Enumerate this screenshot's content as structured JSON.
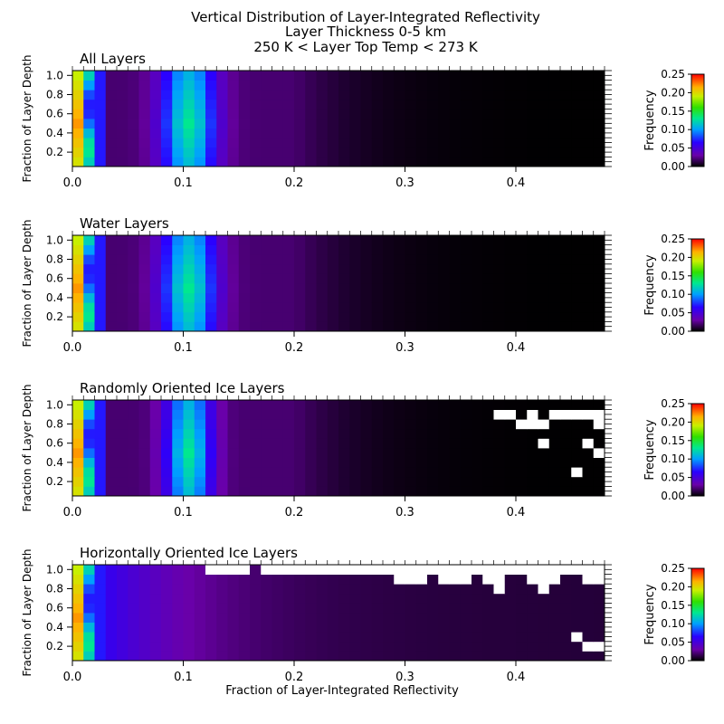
{
  "figure": {
    "title_lines": [
      "Vertical Distribution of Layer-Integrated Reflectivity",
      "Layer Thickness 0-5 km",
      "250 K < Layer Top Temp < 273 K"
    ],
    "xlabel": "Fraction of Layer-Integrated Reflectivity"
  },
  "chart_data": [
    {
      "type": "heatmap",
      "title": "All Layers",
      "ylabel": "Fraction of Layer Depth",
      "xlim": [
        0,
        0.48
      ],
      "ylim": [
        0.05,
        1.05
      ],
      "x_ticks": [
        "0.0",
        "0.1",
        "0.2",
        "0.3",
        "0.4"
      ],
      "y_ticks": [
        "0.2",
        "0.4",
        "0.6",
        "0.8",
        "1.0"
      ],
      "colorbar": {
        "label": "Frequency",
        "range": [
          0,
          0.25
        ],
        "ticks": [
          "0.00",
          "0.05",
          "0.10",
          "0.15",
          "0.20",
          "0.25"
        ],
        "colormap": "rainbow"
      },
      "x_bin_width": 0.01,
      "y_bin_centers": [
        0.1,
        0.2,
        0.3,
        0.4,
        0.5,
        0.6,
        0.7,
        0.8,
        0.9,
        1.0
      ],
      "peak_x": 0.105,
      "spread_x": 0.06,
      "missing_cells": []
    },
    {
      "type": "heatmap",
      "title": "Water Layers",
      "ylabel": "Fraction of Layer Depth",
      "xlim": [
        0,
        0.48
      ],
      "ylim": [
        0.05,
        1.05
      ],
      "x_ticks": [
        "0.0",
        "0.1",
        "0.2",
        "0.3",
        "0.4"
      ],
      "y_ticks": [
        "0.2",
        "0.4",
        "0.6",
        "0.8",
        "1.0"
      ],
      "colorbar": {
        "label": "Frequency",
        "range": [
          0,
          0.25
        ],
        "ticks": [
          "0.00",
          "0.05",
          "0.10",
          "0.15",
          "0.20",
          "0.25"
        ],
        "colormap": "rainbow"
      },
      "x_bin_width": 0.01,
      "y_bin_centers": [
        0.1,
        0.2,
        0.3,
        0.4,
        0.5,
        0.6,
        0.7,
        0.8,
        0.9,
        1.0
      ],
      "peak_x": 0.105,
      "spread_x": 0.06,
      "missing_cells": []
    },
    {
      "type": "heatmap",
      "title": "Randomly Oriented Ice Layers",
      "ylabel": "Fraction of Layer Depth",
      "xlim": [
        0,
        0.48
      ],
      "ylim": [
        0.05,
        1.05
      ],
      "x_ticks": [
        "0.0",
        "0.1",
        "0.2",
        "0.3",
        "0.4"
      ],
      "y_ticks": [
        "0.2",
        "0.4",
        "0.6",
        "0.8",
        "1.0"
      ],
      "colorbar": {
        "label": "Frequency",
        "range": [
          0,
          0.25
        ],
        "ticks": [
          "0.00",
          "0.05",
          "0.10",
          "0.15",
          "0.20",
          "0.25"
        ],
        "colormap": "rainbow"
      },
      "x_bin_width": 0.01,
      "y_bin_centers": [
        0.1,
        0.2,
        0.3,
        0.4,
        0.5,
        0.6,
        0.7,
        0.8,
        0.9,
        1.0
      ],
      "peak_x": 0.105,
      "spread_x": 0.05,
      "missing_cells": [
        [
          0.385,
          0.9
        ],
        [
          0.395,
          0.9
        ],
        [
          0.415,
          0.9
        ],
        [
          0.405,
          0.8
        ],
        [
          0.415,
          0.8
        ],
        [
          0.425,
          0.8
        ],
        [
          0.435,
          0.9
        ],
        [
          0.445,
          0.9
        ],
        [
          0.455,
          0.9
        ],
        [
          0.465,
          0.9
        ],
        [
          0.475,
          0.9
        ],
        [
          0.475,
          0.8
        ],
        [
          0.425,
          0.6
        ],
        [
          0.465,
          0.6
        ],
        [
          0.475,
          0.5
        ],
        [
          0.455,
          0.3
        ]
      ]
    },
    {
      "type": "heatmap",
      "title": "Horizontally Oriented Ice Layers",
      "ylabel": "Fraction of Layer Depth",
      "xlim": [
        0,
        0.48
      ],
      "ylim": [
        0.05,
        1.05
      ],
      "x_ticks": [
        "0.0",
        "0.1",
        "0.2",
        "0.3",
        "0.4"
      ],
      "y_ticks": [
        "0.2",
        "0.4",
        "0.6",
        "0.8",
        "1.0"
      ],
      "colorbar": {
        "label": "Frequency",
        "range": [
          0,
          0.25
        ],
        "ticks": [
          "0.00",
          "0.05",
          "0.10",
          "0.15",
          "0.20",
          "0.25"
        ],
        "colormap": "rainbow"
      },
      "x_bin_width": 0.01,
      "y_bin_centers": [
        0.1,
        0.2,
        0.3,
        0.4,
        0.5,
        0.6,
        0.7,
        0.8,
        0.9,
        1.0
      ],
      "peak_x": 0.015,
      "spread_x": 0.1,
      "missing_cells": [
        [
          0.125,
          1.0
        ],
        [
          0.135,
          1.0
        ],
        [
          0.145,
          1.0
        ],
        [
          0.155,
          1.0
        ],
        [
          0.175,
          1.0
        ],
        [
          0.185,
          1.0
        ],
        [
          0.195,
          1.0
        ],
        [
          0.205,
          1.0
        ],
        [
          0.215,
          1.0
        ],
        [
          0.225,
          1.0
        ],
        [
          0.235,
          1.0
        ],
        [
          0.245,
          1.0
        ],
        [
          0.255,
          1.0
        ],
        [
          0.265,
          1.0
        ],
        [
          0.275,
          1.0
        ],
        [
          0.285,
          1.0
        ],
        [
          0.295,
          1.0
        ],
        [
          0.305,
          1.0
        ],
        [
          0.315,
          1.0
        ],
        [
          0.325,
          1.0
        ],
        [
          0.335,
          1.0
        ],
        [
          0.345,
          1.0
        ],
        [
          0.355,
          1.0
        ],
        [
          0.365,
          1.0
        ],
        [
          0.375,
          1.0
        ],
        [
          0.385,
          1.0
        ],
        [
          0.395,
          1.0
        ],
        [
          0.405,
          1.0
        ],
        [
          0.415,
          1.0
        ],
        [
          0.425,
          1.0
        ],
        [
          0.435,
          1.0
        ],
        [
          0.445,
          1.0
        ],
        [
          0.455,
          1.0
        ],
        [
          0.465,
          1.0
        ],
        [
          0.475,
          1.0
        ],
        [
          0.295,
          0.9
        ],
        [
          0.305,
          0.9
        ],
        [
          0.315,
          0.9
        ],
        [
          0.335,
          0.9
        ],
        [
          0.345,
          0.9
        ],
        [
          0.355,
          0.9
        ],
        [
          0.375,
          0.9
        ],
        [
          0.385,
          0.9
        ],
        [
          0.385,
          0.8
        ],
        [
          0.415,
          0.9
        ],
        [
          0.425,
          0.9
        ],
        [
          0.435,
          0.9
        ],
        [
          0.425,
          0.8
        ],
        [
          0.465,
          0.9
        ],
        [
          0.475,
          0.9
        ],
        [
          0.455,
          0.3
        ],
        [
          0.465,
          0.2
        ],
        [
          0.475,
          0.2
        ]
      ]
    }
  ]
}
